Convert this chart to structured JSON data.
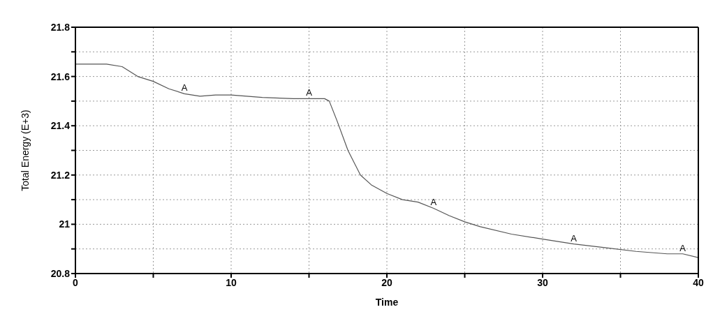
{
  "chart_data": {
    "type": "line",
    "xlabel": "Time",
    "ylabel": "Total Energy (E+3)",
    "x": [
      0,
      2,
      3,
      3.5,
      4,
      5,
      6,
      7,
      8,
      9,
      10,
      12,
      14,
      15,
      16,
      16.3,
      16.8,
      17.5,
      18.3,
      19,
      20,
      21,
      22,
      23,
      24,
      25,
      26,
      28,
      30,
      32,
      34,
      36,
      38,
      39,
      40
    ],
    "series": [
      {
        "color": "#555555",
        "values": [
          21.65,
          21.65,
          21.64,
          21.62,
          21.6,
          21.58,
          21.55,
          21.53,
          21.52,
          21.525,
          21.525,
          21.515,
          21.51,
          21.51,
          21.51,
          21.5,
          21.42,
          21.3,
          21.2,
          21.16,
          21.125,
          21.1,
          21.09,
          21.065,
          21.035,
          21.01,
          20.99,
          20.96,
          20.94,
          20.92,
          20.905,
          20.89,
          20.88,
          20.88,
          20.865
        ]
      }
    ],
    "xlim": [
      0,
      40
    ],
    "xticks": [
      0,
      {
        "value": 5,
        "label": null
      },
      10,
      {
        "value": 15,
        "label": null
      },
      20,
      {
        "value": 25,
        "label": null
      },
      30,
      {
        "value": 35,
        "label": null
      },
      40
    ],
    "ylim": [
      20.8,
      21.8
    ],
    "yticks": [
      20.8,
      {
        "value": 20.9,
        "label": null
      },
      21,
      {
        "value": 21.1,
        "label": null
      },
      21.2,
      {
        "value": 21.3,
        "label": null
      },
      21.4,
      {
        "value": 21.5,
        "label": null
      },
      21.6,
      {
        "value": 21.7,
        "label": null
      },
      21.8
    ],
    "grid": true,
    "marker": "none",
    "line_style": "solid",
    "annotations": [
      {
        "text": "A",
        "x": 7,
        "y": 21.53
      },
      {
        "text": "A",
        "x": 15,
        "y": 21.51
      },
      {
        "text": "A",
        "x": 23,
        "y": 21.065
      },
      {
        "text": "A",
        "x": 32,
        "y": 20.92
      },
      {
        "text": "A",
        "x": 39,
        "y": 20.88
      }
    ]
  }
}
